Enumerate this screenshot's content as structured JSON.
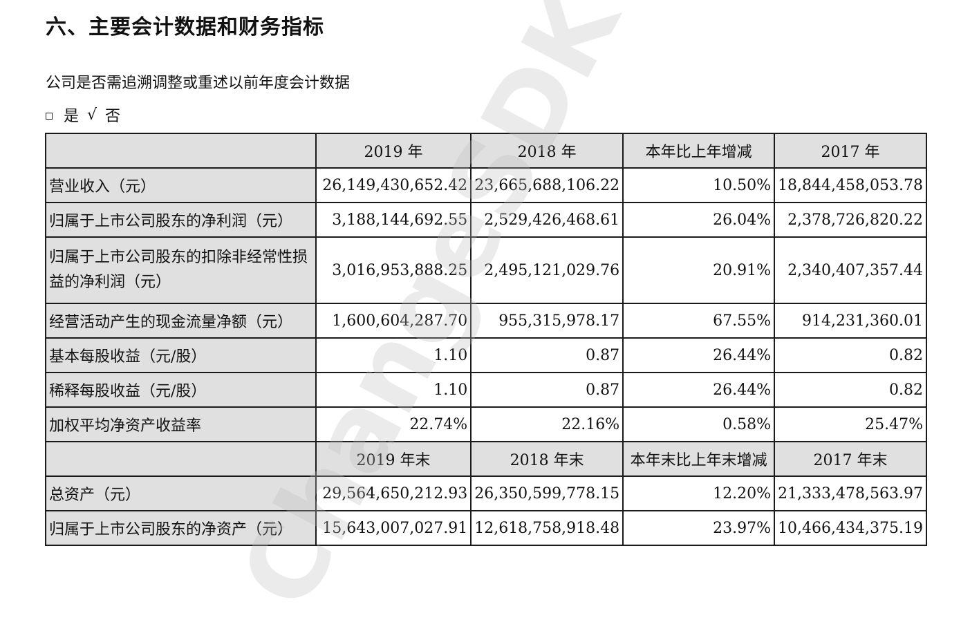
{
  "title": "六、主要会计数据和财务指标",
  "question": "公司是否需追溯调整或重述以前年度会计数据",
  "choice": {
    "yes": "是",
    "check": "√",
    "no": "否"
  },
  "table": {
    "header1": [
      "2019 年",
      "2018 年",
      "本年比上年增减",
      "2017 年"
    ],
    "rows1": [
      {
        "label": "营业收入（元）",
        "values": [
          "26,149,430,652.42",
          "23,665,688,106.22",
          "10.50%",
          "18,844,458,053.78"
        ]
      },
      {
        "label": "归属于上市公司股东的净利润（元）",
        "values": [
          "3,188,144,692.55",
          "2,529,426,468.61",
          "26.04%",
          "2,378,726,820.22"
        ]
      },
      {
        "label": "归属于上市公司股东的扣除非经常性损益的净利润（元）",
        "values": [
          "3,016,953,888.25",
          "2,495,121,029.76",
          "20.91%",
          "2,340,407,357.44"
        ]
      },
      {
        "label": "经营活动产生的现金流量净额（元）",
        "values": [
          "1,600,604,287.70",
          "955,315,978.17",
          "67.55%",
          "914,231,360.01"
        ]
      },
      {
        "label": "基本每股收益（元/股）",
        "values": [
          "1.10",
          "0.87",
          "26.44%",
          "0.82"
        ]
      },
      {
        "label": "稀释每股收益（元/股）",
        "values": [
          "1.10",
          "0.87",
          "26.44%",
          "0.82"
        ]
      },
      {
        "label": "加权平均净资产收益率",
        "values": [
          "22.74%",
          "22.16%",
          "0.58%",
          "25.47%"
        ]
      }
    ],
    "header2": [
      "2019 年末",
      "2018 年末",
      "本年末比上年末增减",
      "2017 年末"
    ],
    "rows2": [
      {
        "label": "总资产（元）",
        "values": [
          "29,564,650,212.93",
          "26,350,599,778.15",
          "12.20%",
          "21,333,478,563.97"
        ]
      },
      {
        "label": "归属于上市公司股东的净资产（元）",
        "values": [
          "15,643,007,027.91",
          "12,618,758,918.48",
          "23.97%",
          "10,466,434,375.19"
        ]
      }
    ]
  },
  "watermark": "ChangeSDK (De"
}
